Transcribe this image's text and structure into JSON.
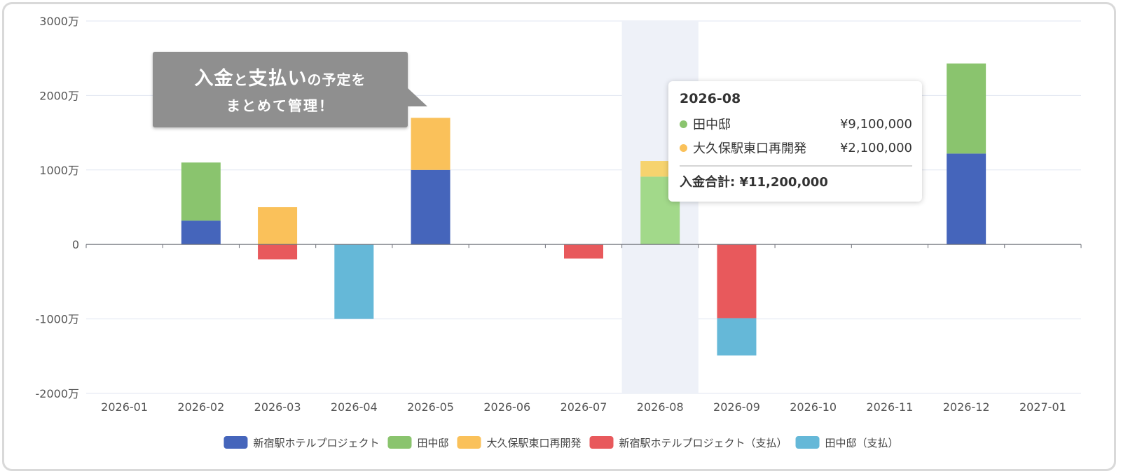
{
  "chart_data": {
    "type": "bar",
    "stacked": true,
    "categories": [
      "2026-01",
      "2026-02",
      "2026-03",
      "2026-04",
      "2026-05",
      "2026-06",
      "2026-07",
      "2026-08",
      "2026-09",
      "2026-10",
      "2026-11",
      "2026-12",
      "2027-01"
    ],
    "y_ticks": [
      {
        "value": 30000000,
        "label": "3000万"
      },
      {
        "value": 20000000,
        "label": "2000万"
      },
      {
        "value": 10000000,
        "label": "1000万"
      },
      {
        "value": 0,
        "label": "0"
      },
      {
        "value": -10000000,
        "label": "-1000万"
      },
      {
        "value": -20000000,
        "label": "-2000万"
      }
    ],
    "ylim": [
      -20000000,
      30000000
    ],
    "highlighted_category": "2026-08",
    "series": [
      {
        "name": "新宿駅ホテルプロジェクト",
        "color": "#4565bb",
        "values": [
          0,
          3200000,
          0,
          0,
          10000000,
          0,
          0,
          0,
          0,
          0,
          0,
          12200000,
          0
        ]
      },
      {
        "name": "田中邸",
        "color": "#8ac46e",
        "values": [
          0,
          7800000,
          0,
          0,
          0,
          0,
          0,
          9100000,
          0,
          0,
          0,
          12100000,
          0
        ]
      },
      {
        "name": "大久保駅東口再開発",
        "color": "#fac15a",
        "values": [
          0,
          0,
          5000000,
          0,
          7000000,
          0,
          0,
          2100000,
          0,
          0,
          0,
          0,
          0
        ]
      },
      {
        "name": "新宿駅ホテルプロジェクト（支払）",
        "color": "#e8595c",
        "values": [
          0,
          0,
          -2000000,
          0,
          0,
          0,
          -1900000,
          0,
          -9900000,
          0,
          0,
          0,
          0
        ]
      },
      {
        "name": "田中邸（支払）",
        "color": "#65b8d8",
        "values": [
          0,
          0,
          0,
          -10000000,
          0,
          0,
          0,
          0,
          -5000000,
          0,
          0,
          0,
          0
        ]
      }
    ]
  },
  "callout": {
    "line1_big1": "入金",
    "line1_small1": "と",
    "line1_big2": "支払い",
    "line1_small2": "の予定を",
    "line2": "まとめて管理！"
  },
  "tooltip": {
    "title": "2026-08",
    "rows": [
      {
        "name": "田中邸",
        "value": "¥9,100,000",
        "color": "#8ac46e"
      },
      {
        "name": "大久保駅東口再開発",
        "value": "¥2,100,000",
        "color": "#fac15a"
      }
    ],
    "total": "入金合計: ¥11,200,000"
  }
}
